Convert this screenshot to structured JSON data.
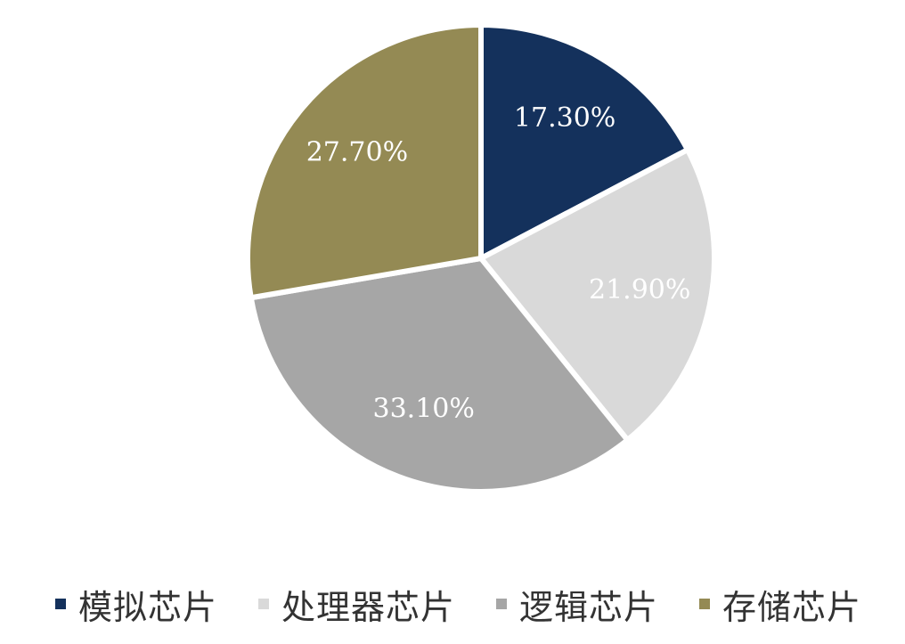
{
  "chart_data": {
    "type": "pie",
    "title": "",
    "start_angle_deg": 0,
    "direction": "clockwise",
    "slices": [
      {
        "name": "模拟芯片",
        "value": 17.3,
        "label": "17.30%",
        "color": "#14315C"
      },
      {
        "name": "处理器芯片",
        "value": 21.9,
        "label": "21.90%",
        "color": "#D9D9D9"
      },
      {
        "name": "逻辑芯片",
        "value": 33.1,
        "label": "33.10%",
        "color": "#A6A6A6"
      },
      {
        "name": "存储芯片",
        "value": 27.7,
        "label": "27.70%",
        "color": "#948A54"
      }
    ],
    "legend": {
      "position": "bottom",
      "entries": [
        "模拟芯片",
        "处理器芯片",
        "逻辑芯片",
        "存储芯片"
      ]
    }
  }
}
